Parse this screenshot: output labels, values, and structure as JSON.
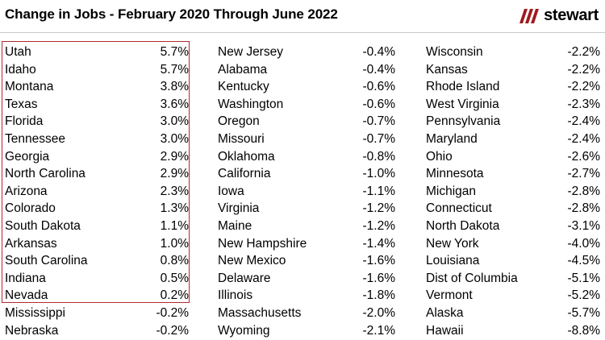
{
  "title": "Change in Jobs - February 2020 Through June 2022",
  "logo": {
    "text": "stewart",
    "brand_color": "#9e1b20"
  },
  "highlight_color": "#b22a2e",
  "columns": [
    [
      {
        "state": "Utah",
        "change": "5.7%"
      },
      {
        "state": "Idaho",
        "change": "5.7%"
      },
      {
        "state": "Montana",
        "change": "3.8%"
      },
      {
        "state": "Texas",
        "change": "3.6%"
      },
      {
        "state": "Florida",
        "change": "3.0%"
      },
      {
        "state": "Tennessee",
        "change": "3.0%"
      },
      {
        "state": "Georgia",
        "change": "2.9%"
      },
      {
        "state": "North Carolina",
        "change": "2.9%"
      },
      {
        "state": "Arizona",
        "change": "2.3%"
      },
      {
        "state": "Colorado",
        "change": "1.3%"
      },
      {
        "state": "South Dakota",
        "change": "1.1%"
      },
      {
        "state": "Arkansas",
        "change": "1.0%"
      },
      {
        "state": "South Carolina",
        "change": "0.8%"
      },
      {
        "state": "Indiana",
        "change": "0.5%"
      },
      {
        "state": "Nevada",
        "change": "0.2%"
      },
      {
        "state": "Mississippi",
        "change": "-0.2%"
      },
      {
        "state": "Nebraska",
        "change": "-0.2%"
      }
    ],
    [
      {
        "state": "New Jersey",
        "change": "-0.4%"
      },
      {
        "state": "Alabama",
        "change": "-0.4%"
      },
      {
        "state": "Kentucky",
        "change": "-0.6%"
      },
      {
        "state": "Washington",
        "change": "-0.6%"
      },
      {
        "state": "Oregon",
        "change": "-0.7%"
      },
      {
        "state": "Missouri",
        "change": "-0.7%"
      },
      {
        "state": "Oklahoma",
        "change": "-0.8%"
      },
      {
        "state": "California",
        "change": "-1.0%"
      },
      {
        "state": "Iowa",
        "change": "-1.1%"
      },
      {
        "state": "Virginia",
        "change": "-1.2%"
      },
      {
        "state": "Maine",
        "change": "-1.2%"
      },
      {
        "state": "New Hampshire",
        "change": "-1.4%"
      },
      {
        "state": "New Mexico",
        "change": "-1.6%"
      },
      {
        "state": "Delaware",
        "change": "-1.6%"
      },
      {
        "state": "Illinois",
        "change": "-1.8%"
      },
      {
        "state": "Massachusetts",
        "change": "-2.0%"
      },
      {
        "state": "Wyoming",
        "change": "-2.1%"
      }
    ],
    [
      {
        "state": "Wisconsin",
        "change": "-2.2%"
      },
      {
        "state": "Kansas",
        "change": "-2.2%"
      },
      {
        "state": "Rhode Island",
        "change": "-2.2%"
      },
      {
        "state": "West Virginia",
        "change": "-2.3%"
      },
      {
        "state": "Pennsylvania",
        "change": "-2.4%"
      },
      {
        "state": "Maryland",
        "change": "-2.4%"
      },
      {
        "state": "Ohio",
        "change": "-2.6%"
      },
      {
        "state": "Minnesota",
        "change": "-2.7%"
      },
      {
        "state": "Michigan",
        "change": "-2.8%"
      },
      {
        "state": "Connecticut",
        "change": "-2.8%"
      },
      {
        "state": "North Dakota",
        "change": "-3.1%"
      },
      {
        "state": "New York",
        "change": "-4.0%"
      },
      {
        "state": "Louisiana",
        "change": "-4.5%"
      },
      {
        "state": "Dist of Columbia",
        "change": "-5.1%"
      },
      {
        "state": "Vermont",
        "change": "-5.2%"
      },
      {
        "state": "Alaska",
        "change": "-5.7%"
      },
      {
        "state": "Hawaii",
        "change": "-8.8%"
      }
    ]
  ]
}
